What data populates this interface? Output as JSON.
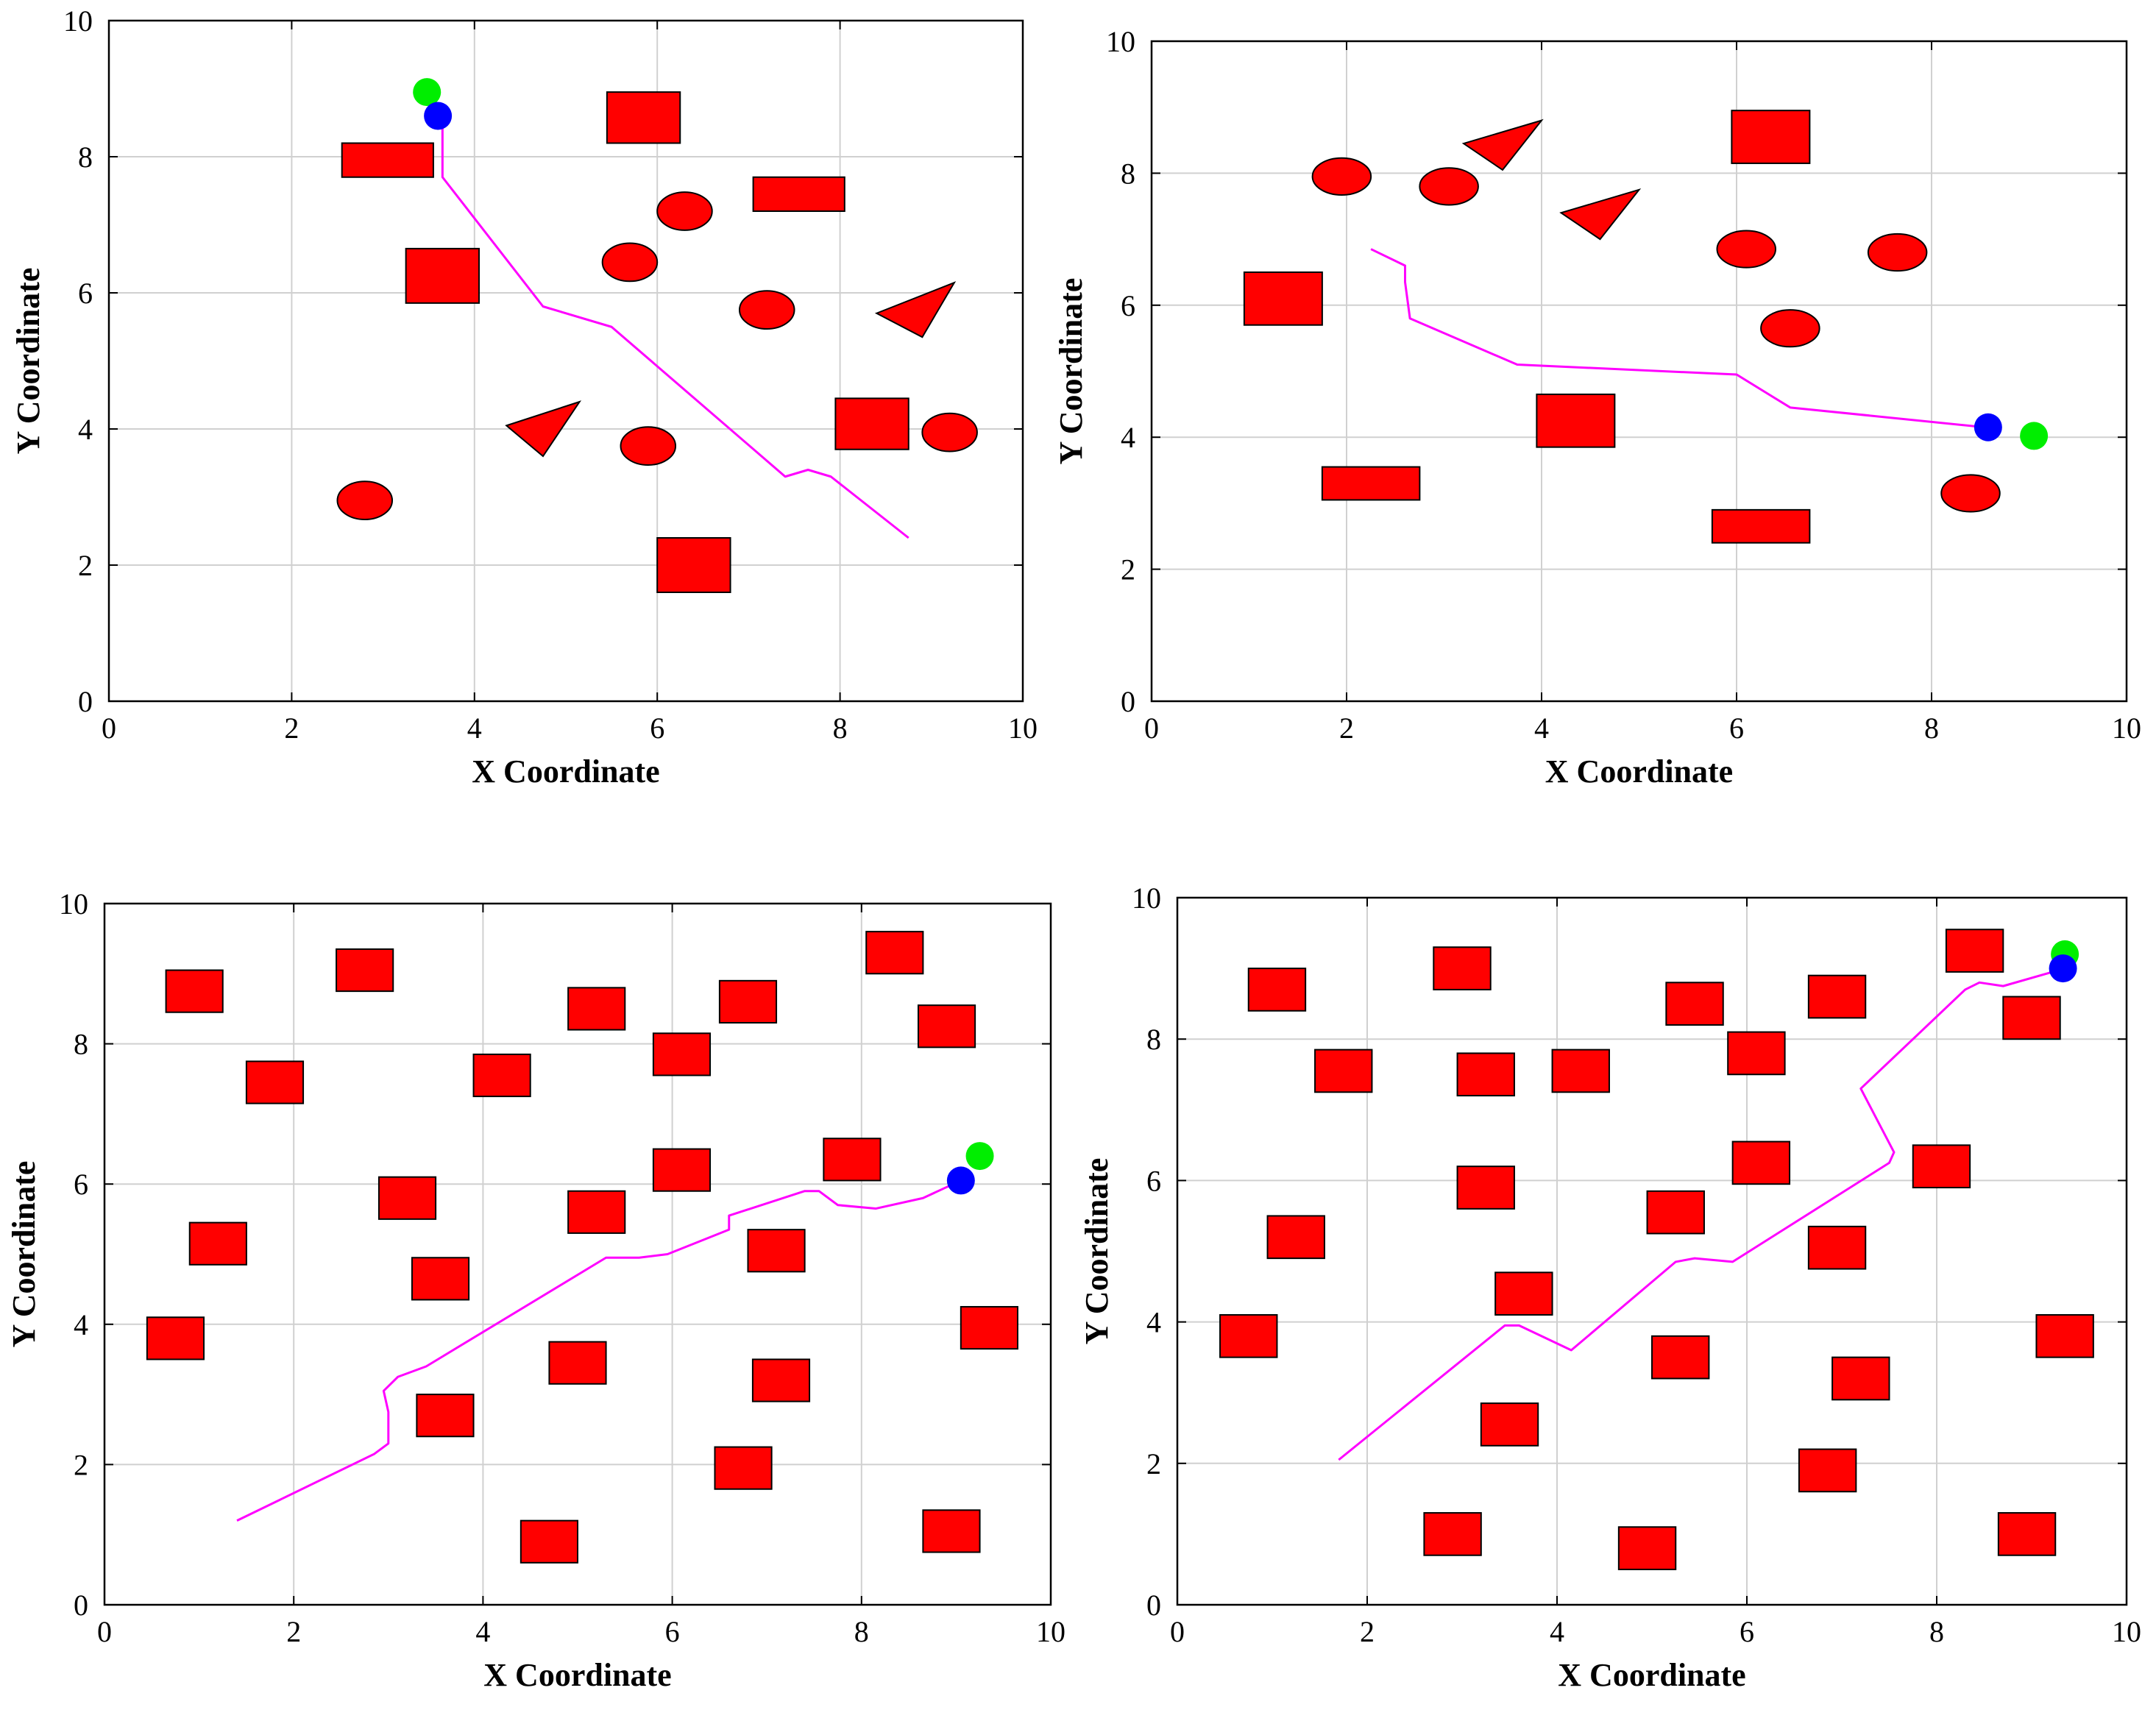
{
  "figure": {
    "description_colors": {
      "obstacle": "#ff0000",
      "obstacle_edge": "#000000",
      "path": "#ff00ff",
      "goal_marker": "#00ee00",
      "agent_marker": "#0000ff",
      "grid": "#d0d0d0",
      "axis": "#000000"
    }
  },
  "chart_data": [
    {
      "type": "scatter",
      "panel": "top-left",
      "title": "",
      "xlabel": "X Coordinate",
      "ylabel": "Y Coordinate",
      "xlim": [
        0,
        10
      ],
      "ylim": [
        0,
        10
      ],
      "xticks": [
        0,
        2,
        4,
        6,
        8,
        10
      ],
      "yticks": [
        0,
        2,
        4,
        6,
        8,
        10
      ],
      "grid": true,
      "obstacles": [
        {
          "shape": "rect",
          "x": 2.55,
          "y": 7.7,
          "w": 1.0,
          "h": 0.5
        },
        {
          "shape": "rect",
          "x": 5.45,
          "y": 8.2,
          "w": 0.8,
          "h": 0.75
        },
        {
          "shape": "rect",
          "x": 7.05,
          "y": 7.2,
          "w": 1.0,
          "h": 0.5
        },
        {
          "shape": "rect",
          "x": 3.25,
          "y": 5.85,
          "w": 0.8,
          "h": 0.8
        },
        {
          "shape": "rect",
          "x": 7.95,
          "y": 3.7,
          "w": 0.8,
          "h": 0.75
        },
        {
          "shape": "rect",
          "x": 6.0,
          "y": 1.6,
          "w": 0.8,
          "h": 0.8
        },
        {
          "shape": "ellipse",
          "cx": 6.3,
          "cy": 7.2,
          "rx": 0.3,
          "ry": 0.28
        },
        {
          "shape": "ellipse",
          "cx": 5.7,
          "cy": 6.45,
          "rx": 0.3,
          "ry": 0.28
        },
        {
          "shape": "ellipse",
          "cx": 7.2,
          "cy": 5.75,
          "rx": 0.3,
          "ry": 0.28
        },
        {
          "shape": "ellipse",
          "cx": 5.9,
          "cy": 3.75,
          "rx": 0.3,
          "ry": 0.28
        },
        {
          "shape": "ellipse",
          "cx": 9.2,
          "cy": 3.95,
          "rx": 0.3,
          "ry": 0.28
        },
        {
          "shape": "ellipse",
          "cx": 2.8,
          "cy": 2.95,
          "rx": 0.3,
          "ry": 0.28
        },
        {
          "shape": "triangle",
          "points": [
            [
              8.4,
              5.7
            ],
            [
              9.25,
              6.15
            ],
            [
              8.9,
              5.35
            ]
          ]
        },
        {
          "shape": "triangle",
          "points": [
            [
              4.35,
              4.05
            ],
            [
              5.15,
              4.4
            ],
            [
              4.75,
              3.6
            ]
          ]
        }
      ],
      "path": {
        "x": [
          3.6,
          3.65,
          3.65,
          4.75,
          5.5,
          7.4,
          7.65,
          7.9,
          8.75
        ],
        "y": [
          8.6,
          8.5,
          7.7,
          5.8,
          5.5,
          3.3,
          3.4,
          3.3,
          2.4
        ]
      },
      "goal": {
        "x": 3.48,
        "y": 8.95
      },
      "agent": {
        "x": 3.6,
        "y": 8.6
      }
    },
    {
      "type": "scatter",
      "panel": "top-right",
      "title": "",
      "xlabel": "X Coordinate",
      "ylabel": "Y Coordinate",
      "xlim": [
        0,
        10
      ],
      "ylim": [
        0,
        10
      ],
      "xticks": [
        0,
        2,
        4,
        6,
        8,
        10
      ],
      "yticks": [
        0,
        2,
        4,
        6,
        8,
        10
      ],
      "grid": true,
      "obstacles": [
        {
          "shape": "rect",
          "x": 5.95,
          "y": 8.15,
          "w": 0.8,
          "h": 0.8
        },
        {
          "shape": "rect",
          "x": 0.95,
          "y": 5.7,
          "w": 0.8,
          "h": 0.8
        },
        {
          "shape": "rect",
          "x": 3.95,
          "y": 3.85,
          "w": 0.8,
          "h": 0.8
        },
        {
          "shape": "rect",
          "x": 1.75,
          "y": 3.05,
          "w": 1.0,
          "h": 0.5
        },
        {
          "shape": "rect",
          "x": 5.75,
          "y": 2.4,
          "w": 1.0,
          "h": 0.5
        },
        {
          "shape": "ellipse",
          "cx": 1.95,
          "cy": 7.95,
          "rx": 0.3,
          "ry": 0.28
        },
        {
          "shape": "ellipse",
          "cx": 3.05,
          "cy": 7.8,
          "rx": 0.3,
          "ry": 0.28
        },
        {
          "shape": "ellipse",
          "cx": 6.1,
          "cy": 6.85,
          "rx": 0.3,
          "ry": 0.28
        },
        {
          "shape": "ellipse",
          "cx": 7.65,
          "cy": 6.8,
          "rx": 0.3,
          "ry": 0.28
        },
        {
          "shape": "ellipse",
          "cx": 6.55,
          "cy": 5.65,
          "rx": 0.3,
          "ry": 0.28
        },
        {
          "shape": "ellipse",
          "cx": 8.4,
          "cy": 3.15,
          "rx": 0.3,
          "ry": 0.28
        },
        {
          "shape": "triangle",
          "points": [
            [
              3.2,
              8.45
            ],
            [
              4.0,
              8.8
            ],
            [
              3.6,
              8.05
            ]
          ]
        },
        {
          "shape": "triangle",
          "points": [
            [
              4.2,
              7.4
            ],
            [
              5.0,
              7.75
            ],
            [
              4.6,
              7.0
            ]
          ]
        }
      ],
      "path": {
        "x": [
          2.25,
          2.6,
          2.6,
          2.65,
          3.75,
          6.0,
          6.55,
          8.55
        ],
        "y": [
          6.85,
          6.6,
          6.35,
          5.8,
          5.1,
          4.95,
          4.45,
          4.15
        ]
      },
      "goal": {
        "x": 9.05,
        "y": 4.02
      },
      "agent": {
        "x": 8.58,
        "y": 4.15
      }
    },
    {
      "type": "scatter",
      "panel": "bottom-left",
      "title": "",
      "xlabel": "X Coordinate",
      "ylabel": "Y Coordinate",
      "xlim": [
        0,
        10
      ],
      "ylim": [
        0,
        10
      ],
      "xticks": [
        0,
        2,
        4,
        6,
        8,
        10
      ],
      "yticks": [
        0,
        2,
        4,
        6,
        8,
        10
      ],
      "grid": true,
      "obstacles": [
        {
          "shape": "rect",
          "x": 0.65,
          "y": 8.45,
          "w": 0.6,
          "h": 0.6
        },
        {
          "shape": "rect",
          "x": 2.45,
          "y": 8.75,
          "w": 0.6,
          "h": 0.6
        },
        {
          "shape": "rect",
          "x": 8.05,
          "y": 9.0,
          "w": 0.6,
          "h": 0.6
        },
        {
          "shape": "rect",
          "x": 4.9,
          "y": 8.2,
          "w": 0.6,
          "h": 0.6
        },
        {
          "shape": "rect",
          "x": 6.5,
          "y": 8.3,
          "w": 0.6,
          "h": 0.6
        },
        {
          "shape": "rect",
          "x": 8.6,
          "y": 7.95,
          "w": 0.6,
          "h": 0.6
        },
        {
          "shape": "rect",
          "x": 1.5,
          "y": 7.15,
          "w": 0.6,
          "h": 0.6
        },
        {
          "shape": "rect",
          "x": 5.8,
          "y": 7.55,
          "w": 0.6,
          "h": 0.6
        },
        {
          "shape": "rect",
          "x": 3.9,
          "y": 7.25,
          "w": 0.6,
          "h": 0.6
        },
        {
          "shape": "rect",
          "x": 5.8,
          "y": 5.9,
          "w": 0.6,
          "h": 0.6
        },
        {
          "shape": "rect",
          "x": 7.6,
          "y": 6.05,
          "w": 0.6,
          "h": 0.6
        },
        {
          "shape": "rect",
          "x": 2.9,
          "y": 5.5,
          "w": 0.6,
          "h": 0.6
        },
        {
          "shape": "rect",
          "x": 0.9,
          "y": 4.85,
          "w": 0.6,
          "h": 0.6
        },
        {
          "shape": "rect",
          "x": 4.9,
          "y": 5.3,
          "w": 0.6,
          "h": 0.6
        },
        {
          "shape": "rect",
          "x": 6.8,
          "y": 4.75,
          "w": 0.6,
          "h": 0.6
        },
        {
          "shape": "rect",
          "x": 3.25,
          "y": 4.35,
          "w": 0.6,
          "h": 0.6
        },
        {
          "shape": "rect",
          "x": 0.45,
          "y": 3.5,
          "w": 0.6,
          "h": 0.6
        },
        {
          "shape": "rect",
          "x": 4.7,
          "y": 3.15,
          "w": 0.6,
          "h": 0.6
        },
        {
          "shape": "rect",
          "x": 6.85,
          "y": 2.9,
          "w": 0.6,
          "h": 0.6
        },
        {
          "shape": "rect",
          "x": 9.05,
          "y": 3.65,
          "w": 0.6,
          "h": 0.6
        },
        {
          "shape": "rect",
          "x": 3.3,
          "y": 2.4,
          "w": 0.6,
          "h": 0.6
        },
        {
          "shape": "rect",
          "x": 6.45,
          "y": 1.65,
          "w": 0.6,
          "h": 0.6
        },
        {
          "shape": "rect",
          "x": 4.4,
          "y": 0.6,
          "w": 0.6,
          "h": 0.6
        },
        {
          "shape": "rect",
          "x": 8.65,
          "y": 0.75,
          "w": 0.6,
          "h": 0.6
        }
      ],
      "path": {
        "x": [
          1.4,
          2.85,
          3.0,
          3.0,
          2.95,
          3.1,
          3.4,
          5.3,
          5.65,
          5.95,
          6.6,
          6.6,
          7.4,
          7.55,
          7.75,
          8.15,
          8.65,
          9.05
        ],
        "y": [
          1.2,
          2.15,
          2.3,
          2.75,
          3.05,
          3.25,
          3.4,
          4.95,
          4.95,
          5.0,
          5.35,
          5.55,
          5.9,
          5.9,
          5.7,
          5.65,
          5.8,
          6.05
        ]
      },
      "goal": {
        "x": 9.25,
        "y": 6.4
      },
      "agent": {
        "x": 9.05,
        "y": 6.05
      }
    },
    {
      "type": "scatter",
      "panel": "bottom-right",
      "title": "",
      "xlabel": "X Coordinate",
      "ylabel": "Y Coordinate",
      "xlim": [
        0,
        10
      ],
      "ylim": [
        0,
        10
      ],
      "xticks": [
        0,
        2,
        4,
        6,
        8,
        10
      ],
      "yticks": [
        0,
        2,
        4,
        6,
        8,
        10
      ],
      "grid": true,
      "obstacles": [
        {
          "shape": "rect",
          "x": 0.75,
          "y": 8.4,
          "w": 0.6,
          "h": 0.6
        },
        {
          "shape": "rect",
          "x": 2.7,
          "y": 8.7,
          "w": 0.6,
          "h": 0.6
        },
        {
          "shape": "rect",
          "x": 8.1,
          "y": 8.95,
          "w": 0.6,
          "h": 0.6
        },
        {
          "shape": "rect",
          "x": 5.15,
          "y": 8.2,
          "w": 0.6,
          "h": 0.6
        },
        {
          "shape": "rect",
          "x": 6.65,
          "y": 8.3,
          "w": 0.6,
          "h": 0.6
        },
        {
          "shape": "rect",
          "x": 8.7,
          "y": 8.0,
          "w": 0.6,
          "h": 0.6
        },
        {
          "shape": "rect",
          "x": 1.45,
          "y": 7.25,
          "w": 0.6,
          "h": 0.6
        },
        {
          "shape": "rect",
          "x": 2.95,
          "y": 7.2,
          "w": 0.6,
          "h": 0.6
        },
        {
          "shape": "rect",
          "x": 3.95,
          "y": 7.25,
          "w": 0.6,
          "h": 0.6
        },
        {
          "shape": "rect",
          "x": 5.8,
          "y": 7.5,
          "w": 0.6,
          "h": 0.6
        },
        {
          "shape": "rect",
          "x": 5.85,
          "y": 5.95,
          "w": 0.6,
          "h": 0.6
        },
        {
          "shape": "rect",
          "x": 7.75,
          "y": 5.9,
          "w": 0.6,
          "h": 0.6
        },
        {
          "shape": "rect",
          "x": 2.95,
          "y": 5.6,
          "w": 0.6,
          "h": 0.6
        },
        {
          "shape": "rect",
          "x": 0.95,
          "y": 4.9,
          "w": 0.6,
          "h": 0.6
        },
        {
          "shape": "rect",
          "x": 4.95,
          "y": 5.25,
          "w": 0.6,
          "h": 0.6
        },
        {
          "shape": "rect",
          "x": 6.65,
          "y": 4.75,
          "w": 0.6,
          "h": 0.6
        },
        {
          "shape": "rect",
          "x": 3.35,
          "y": 4.1,
          "w": 0.6,
          "h": 0.6
        },
        {
          "shape": "rect",
          "x": 0.45,
          "y": 3.5,
          "w": 0.6,
          "h": 0.6
        },
        {
          "shape": "rect",
          "x": 5.0,
          "y": 3.2,
          "w": 0.6,
          "h": 0.6
        },
        {
          "shape": "rect",
          "x": 6.9,
          "y": 2.9,
          "w": 0.6,
          "h": 0.6
        },
        {
          "shape": "rect",
          "x": 9.05,
          "y": 3.5,
          "w": 0.6,
          "h": 0.6
        },
        {
          "shape": "rect",
          "x": 3.2,
          "y": 2.25,
          "w": 0.6,
          "h": 0.6
        },
        {
          "shape": "rect",
          "x": 6.55,
          "y": 1.6,
          "w": 0.6,
          "h": 0.6
        },
        {
          "shape": "rect",
          "x": 2.6,
          "y": 0.7,
          "w": 0.6,
          "h": 0.6
        },
        {
          "shape": "rect",
          "x": 4.65,
          "y": 0.5,
          "w": 0.6,
          "h": 0.6
        },
        {
          "shape": "rect",
          "x": 8.65,
          "y": 0.7,
          "w": 0.6,
          "h": 0.6
        }
      ],
      "path": {
        "x": [
          1.7,
          3.45,
          3.6,
          4.15,
          5.25,
          5.45,
          5.85,
          7.5,
          7.55,
          7.2,
          8.3,
          8.45,
          8.7,
          9.35
        ],
        "y": [
          2.05,
          3.95,
          3.95,
          3.6,
          4.85,
          4.9,
          4.85,
          6.25,
          6.4,
          7.3,
          8.7,
          8.8,
          8.75,
          9.0
        ]
      },
      "goal": {
        "x": 9.35,
        "y": 9.2
      },
      "agent": {
        "x": 9.33,
        "y": 9.0
      }
    }
  ]
}
